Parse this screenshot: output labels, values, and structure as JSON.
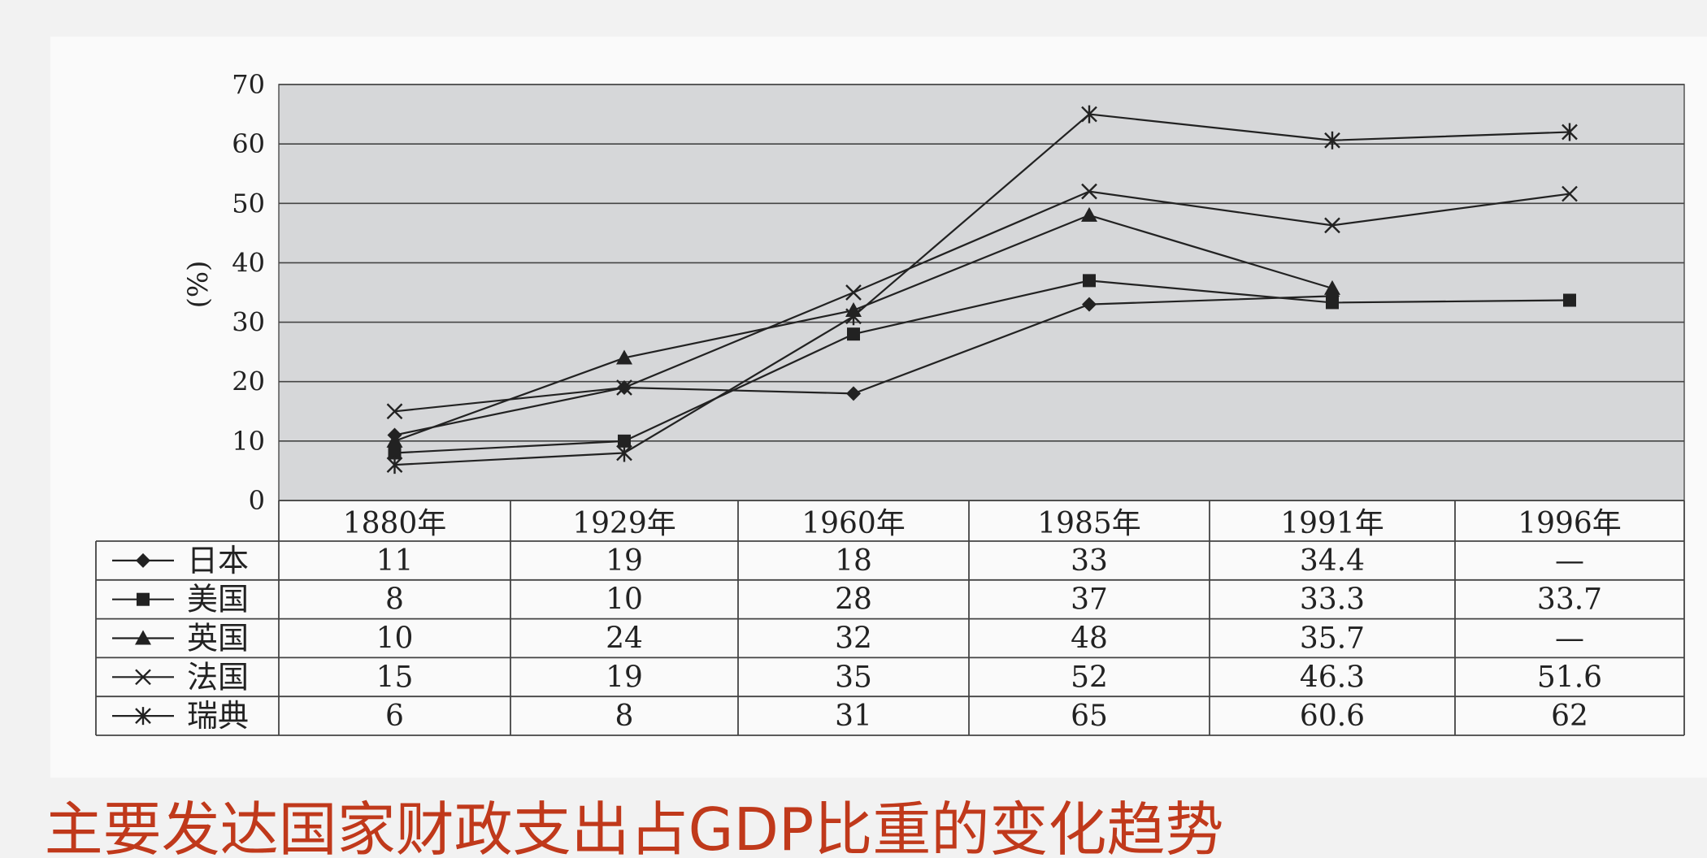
{
  "chart_data": {
    "type": "line",
    "title": "主要发达国家财政支出占GDP比重的变化趋势",
    "ylabel": "(%)",
    "ylim": [
      0,
      70
    ],
    "yticks": [
      0,
      10,
      20,
      30,
      40,
      50,
      60,
      70
    ],
    "categories": [
      "1880年",
      "1929年",
      "1960年",
      "1985年",
      "1991年",
      "1996年"
    ],
    "grid": true,
    "legend": "table-left",
    "series": [
      {
        "name": "日本",
        "marker": "diamond",
        "values": [
          11,
          19,
          18,
          33,
          34.4,
          null
        ],
        "labels": [
          "11",
          "19",
          "18",
          "33",
          "34.4",
          "—"
        ]
      },
      {
        "name": "美国",
        "marker": "square",
        "values": [
          8,
          10,
          28,
          37,
          33.3,
          33.7
        ],
        "labels": [
          "8",
          "10",
          "28",
          "37",
          "33.3",
          "33.7"
        ]
      },
      {
        "name": "英国",
        "marker": "triangle",
        "values": [
          10,
          24,
          32,
          48,
          35.7,
          null
        ],
        "labels": [
          "10",
          "24",
          "32",
          "48",
          "35.7",
          "—"
        ]
      },
      {
        "name": "法国",
        "marker": "x",
        "values": [
          15,
          19,
          35,
          52,
          46.3,
          51.6
        ],
        "labels": [
          "15",
          "19",
          "35",
          "52",
          "46.3",
          "51.6"
        ]
      },
      {
        "name": "瑞典",
        "marker": "star",
        "values": [
          6,
          8,
          31,
          65,
          60.6,
          62
        ],
        "labels": [
          "6",
          "8",
          "31",
          "65",
          "60.6",
          "62"
        ]
      }
    ]
  },
  "colors": {
    "page_bg": "#f2f2f2",
    "panel_bg": "#fafafa",
    "plot_bg": "#d6d7d9",
    "line": "#222222",
    "caption": "#c0391b"
  }
}
